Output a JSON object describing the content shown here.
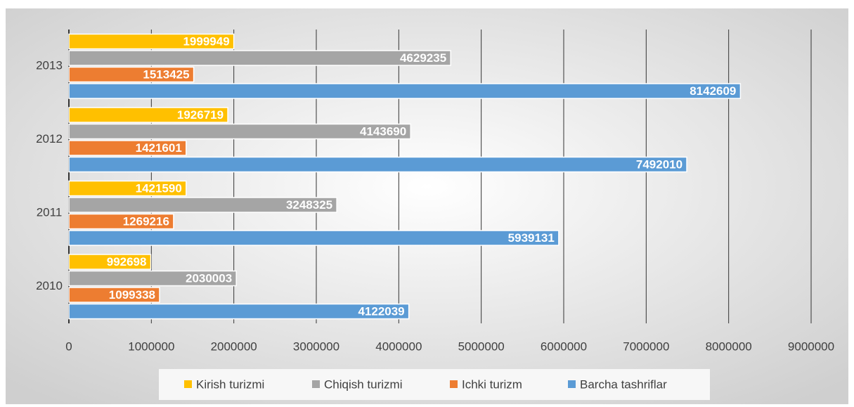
{
  "chart_data": {
    "type": "bar",
    "orientation": "horizontal",
    "categories": [
      "2010",
      "2011",
      "2012",
      "2013"
    ],
    "series": [
      {
        "name": "Kirish turizmi",
        "color": "#ffc000",
        "values": [
          992698,
          1421590,
          1926719,
          1999949
        ]
      },
      {
        "name": "Chiqish turizmi",
        "color": "#a5a5a5",
        "values": [
          2030003,
          3248325,
          4143690,
          4629235
        ]
      },
      {
        "name": "Ichki turizm",
        "color": "#ed7d31",
        "values": [
          1099338,
          1269216,
          1421601,
          1513425
        ]
      },
      {
        "name": "Barcha tashriflar",
        "color": "#5b9bd5",
        "values": [
          4122039,
          5939131,
          7492010,
          8142609
        ]
      }
    ],
    "xlim": [
      0,
      9000000
    ],
    "xticks": [
      0,
      1000000,
      2000000,
      3000000,
      4000000,
      5000000,
      6000000,
      7000000,
      8000000,
      9000000
    ],
    "grid": true,
    "legend": "bottom",
    "data_labels": true
  }
}
